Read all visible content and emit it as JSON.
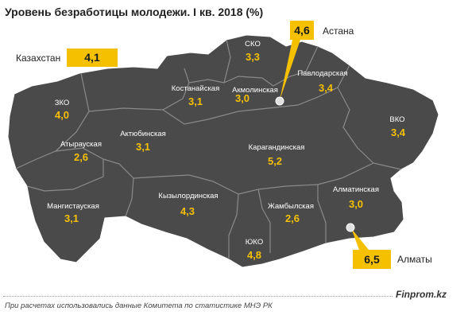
{
  "title": "Уровень безработицы молодежи. I кв. 2018  (%)",
  "kazakhstan": {
    "label": "Казахстан",
    "value": "4,1"
  },
  "astana": {
    "label": "Астана",
    "value": "4,6"
  },
  "almaty": {
    "label": "Алматы",
    "value": "6,5"
  },
  "regions": [
    {
      "name": "ЗКО",
      "value": "4,0"
    },
    {
      "name": "Атырауская",
      "value": "2,6"
    },
    {
      "name": "Мангистауская",
      "value": "3,1"
    },
    {
      "name": "Актюбинская",
      "value": "3,1"
    },
    {
      "name": "Костанайская",
      "value": "3,1"
    },
    {
      "name": "СКО",
      "value": "3,3"
    },
    {
      "name": "Акмолинская",
      "value": "3,0"
    },
    {
      "name": "Павлодарская",
      "value": "3,4"
    },
    {
      "name": "ВКО",
      "value": "3,4"
    },
    {
      "name": "Карагандинская",
      "value": "5,2"
    },
    {
      "name": "Кызылординская",
      "value": "4,3"
    },
    {
      "name": "Жамбылская",
      "value": "2,6"
    },
    {
      "name": "ЮКО",
      "value": "4,8"
    },
    {
      "name": "Алматинская",
      "value": "3,0"
    }
  ],
  "colors": {
    "map_fill": "#4a4a4a",
    "border": "#8a8a8a",
    "accent": "#f5c000"
  },
  "brand": "Finprom.kz",
  "source": "При расчетах использовались данные Комитета по статистике МНЭ РК"
}
